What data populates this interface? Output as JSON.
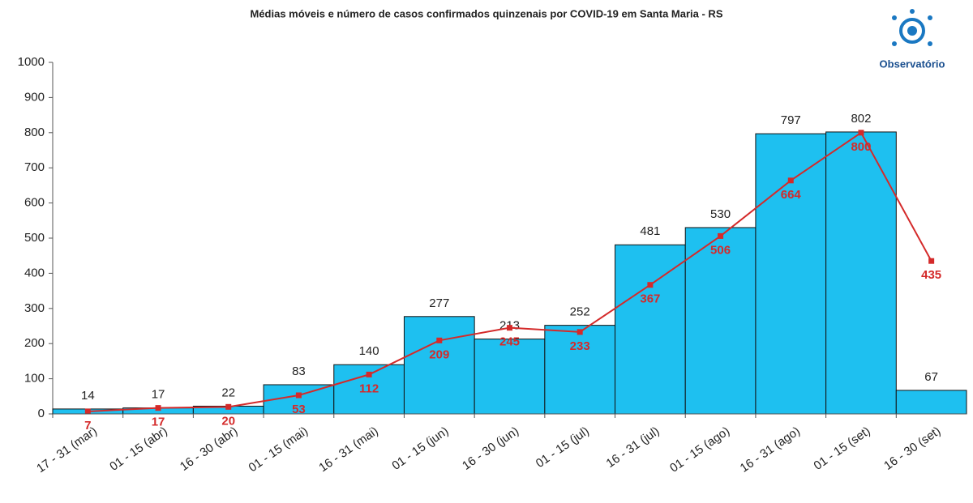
{
  "chart_data": {
    "type": "bar_line",
    "title": "Médias móveis e número de casos confirmados quinzenais por COVID-19 em Santa Maria - RS",
    "logo_text": "Observatório",
    "categories": [
      "17 - 31 (mar)",
      "01 - 15 (abr)",
      "16 - 30 (abr)",
      "01 - 15 (mai)",
      "16 - 31 (mai)",
      "01 - 15 (jun)",
      "16 - 30 (jun)",
      "01 - 15 (jul)",
      "16 - 31 (jul)",
      "01 - 15 (ago)",
      "16 - 31 (ago)",
      "01 - 15 (set)",
      "16 - 30 (set)"
    ],
    "series": [
      {
        "type": "bar",
        "color": "#1ec0f0",
        "values": [
          14,
          17,
          22,
          83,
          140,
          277,
          213,
          252,
          481,
          530,
          797,
          802,
          67
        ]
      },
      {
        "type": "line",
        "color": "#d42a2a",
        "values": [
          7,
          17,
          20,
          53,
          112,
          209,
          245,
          233,
          367,
          506,
          664,
          800,
          435
        ]
      }
    ],
    "ylim": [
      0,
      1000
    ],
    "yticks": [
      0,
      100,
      200,
      300,
      400,
      500,
      600,
      700,
      800,
      900,
      1000
    ],
    "grid": false
  }
}
